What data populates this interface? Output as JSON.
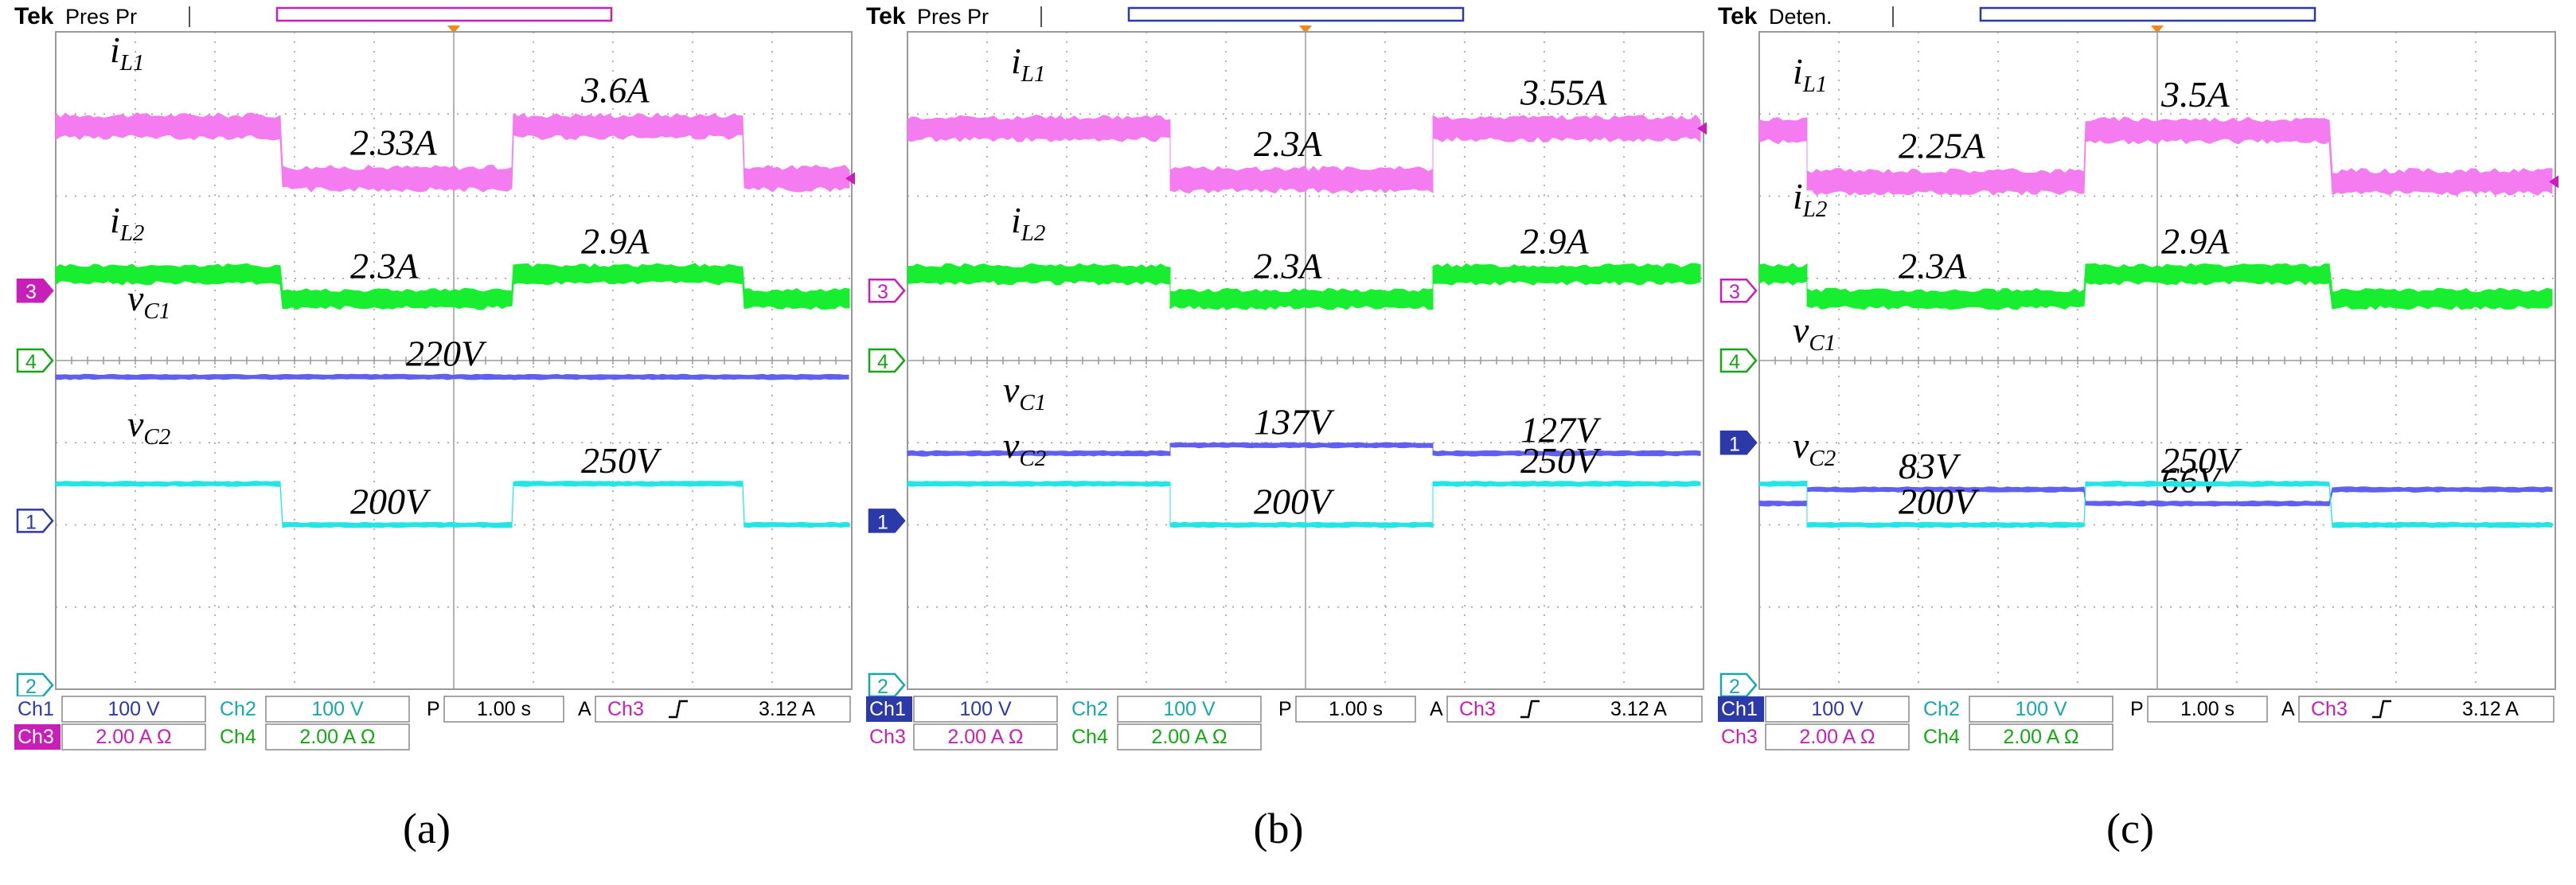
{
  "colors": {
    "ch1": "#2c39a8",
    "ch2": "#18a8a8",
    "ch3": "#c71fb8",
    "ch4": "#14a814",
    "trace_ch1": "#6060f0",
    "trace_ch2": "#22e6e6",
    "trace_ch3": "#f47cf0",
    "trace_ch4": "#17ee30",
    "grid": "#9a9a9a",
    "marker": "#f2891d"
  },
  "chart_data": [
    {
      "panel": "a",
      "caption": "(a)",
      "type": "line",
      "brand": "Tek",
      "mode": "Pres Pr",
      "y_unit_per_div": {
        "v": "100 V",
        "i": "2.00 A"
      },
      "x_time_per_div": "1.00 s",
      "series": [
        {
          "channel": "Ch3",
          "label_main": "i",
          "label_sub": "L1",
          "steps": [
            [
              0,
              3.6
            ],
            [
              2.85,
              2.33
            ],
            [
              5.75,
              3.6
            ],
            [
              8.65,
              2.33
            ]
          ],
          "values_text": [
            "2.33A",
            "3.6A"
          ]
        },
        {
          "channel": "Ch4",
          "label_main": "i",
          "label_sub": "L2",
          "steps": [
            [
              0,
              2.9
            ],
            [
              2.85,
              2.3
            ],
            [
              5.75,
              2.9
            ],
            [
              8.65,
              2.3
            ]
          ],
          "values_text": [
            "2.3A",
            "2.9A"
          ]
        },
        {
          "channel": "Ch1",
          "label_main": "v",
          "label_sub": "C1",
          "steps": [
            [
              0,
              220
            ]
          ],
          "values_text": [
            "220V"
          ]
        },
        {
          "channel": "Ch2",
          "label_main": "v",
          "label_sub": "C2",
          "steps": [
            [
              0,
              250
            ],
            [
              2.85,
              200
            ],
            [
              5.75,
              250
            ],
            [
              8.65,
              200
            ]
          ],
          "values_text": [
            "200V",
            "250V"
          ]
        }
      ],
      "status": {
        "ch1_label": "Ch1",
        "ch1_scale": "100 V",
        "ch2_label": "Ch2",
        "ch2_scale": "100 V",
        "time_label": "P",
        "time_scale": "1.00 s",
        "trigger_label": "A",
        "trigger_ch": "Ch3",
        "trigger_level": "3.12 A",
        "ch3_label": "Ch3",
        "ch3_scale": "2.00 A Ω",
        "ch4_label": "Ch4",
        "ch4_scale": "2.00 A Ω"
      },
      "markers": {
        "ch3": "3",
        "ch4": "4",
        "ch1": "1",
        "ch2": "2"
      }
    },
    {
      "panel": "b",
      "caption": "(b)",
      "type": "line",
      "brand": "Tek",
      "mode": "Pres Pr",
      "y_unit_per_div": {
        "v": "100 V",
        "i": "2.00 A"
      },
      "x_time_per_div": "1.00 s",
      "series": [
        {
          "channel": "Ch3",
          "label_main": "i",
          "label_sub": "L1",
          "steps": [
            [
              0,
              3.55
            ],
            [
              3.3,
              2.3
            ],
            [
              6.6,
              3.55
            ]
          ],
          "values_text": [
            "2.3A",
            "3.55A"
          ]
        },
        {
          "channel": "Ch4",
          "label_main": "i",
          "label_sub": "L2",
          "steps": [
            [
              0,
              2.9
            ],
            [
              3.3,
              2.3
            ],
            [
              6.6,
              2.9
            ]
          ],
          "values_text": [
            "2.3A",
            "2.9A"
          ]
        },
        {
          "channel": "Ch1",
          "label_main": "v",
          "label_sub": "C1",
          "steps": [
            [
              0,
              127
            ],
            [
              3.3,
              137
            ],
            [
              6.6,
              127
            ]
          ],
          "values_text": [
            "137V",
            "127V"
          ]
        },
        {
          "channel": "Ch2",
          "label_main": "v",
          "label_sub": "C2",
          "steps": [
            [
              0,
              250
            ],
            [
              3.3,
              200
            ],
            [
              6.6,
              250
            ]
          ],
          "values_text": [
            "200V",
            "250V"
          ]
        }
      ],
      "status": {
        "ch1_label": "Ch1",
        "ch1_scale": "100 V",
        "ch2_label": "Ch2",
        "ch2_scale": "100 V",
        "time_label": "P",
        "time_scale": "1.00 s",
        "trigger_label": "A",
        "trigger_ch": "Ch3",
        "trigger_level": "3.12 A",
        "ch3_label": "Ch3",
        "ch3_scale": "2.00 A Ω",
        "ch4_label": "Ch4",
        "ch4_scale": "2.00 A Ω"
      },
      "markers": {
        "ch3": "3",
        "ch4": "4",
        "ch1": "1",
        "ch2": "2"
      }
    },
    {
      "panel": "c",
      "caption": "(c)",
      "type": "line",
      "brand": "Tek",
      "mode": "Deten.",
      "y_unit_per_div": {
        "v": "100 V",
        "i": "2.00 A"
      },
      "x_time_per_div": "1.00 s",
      "series": [
        {
          "channel": "Ch3",
          "label_main": "i",
          "label_sub": "L1",
          "steps": [
            [
              0,
              3.5
            ],
            [
              0.6,
              2.25
            ],
            [
              4.1,
              3.5
            ],
            [
              7.2,
              2.25
            ]
          ],
          "values_text": [
            "2.25A",
            "3.5A"
          ]
        },
        {
          "channel": "Ch4",
          "label_main": "i",
          "label_sub": "L2",
          "steps": [
            [
              0,
              2.9
            ],
            [
              0.6,
              2.3
            ],
            [
              4.1,
              2.9
            ],
            [
              7.2,
              2.3
            ]
          ],
          "values_text": [
            "2.3A",
            "2.9A"
          ]
        },
        {
          "channel": "Ch1",
          "label_main": "v",
          "label_sub": "C1",
          "steps": [
            [
              0,
              66
            ],
            [
              0.6,
              83
            ],
            [
              4.1,
              66
            ],
            [
              7.2,
              83
            ]
          ],
          "values_text": [
            "83V",
            "66V"
          ]
        },
        {
          "channel": "Ch2",
          "label_main": "v",
          "label_sub": "C2",
          "steps": [
            [
              0,
              250
            ],
            [
              0.6,
              200
            ],
            [
              4.1,
              250
            ],
            [
              7.2,
              200
            ]
          ],
          "values_text": [
            "200V",
            "250V"
          ]
        }
      ],
      "status": {
        "ch1_label": "Ch1",
        "ch1_scale": "100 V",
        "ch2_label": "Ch2",
        "ch2_scale": "100 V",
        "time_label": "P",
        "time_scale": "1.00 s",
        "trigger_label": "A",
        "trigger_ch": "Ch3",
        "trigger_level": "3.12 A",
        "ch3_label": "Ch3",
        "ch3_scale": "2.00 A Ω",
        "ch4_label": "Ch4",
        "ch4_scale": "2.00 A Ω"
      },
      "markers": {
        "ch3": "3",
        "ch4": "4",
        "ch1": "1",
        "ch2": "2"
      }
    }
  ]
}
